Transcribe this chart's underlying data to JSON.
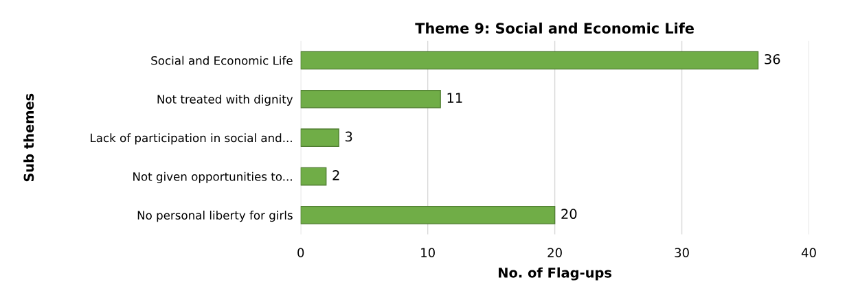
{
  "chart_data": {
    "type": "bar",
    "orientation": "horizontal",
    "title": "Theme 9: Social and Economic Life",
    "xlabel": "No. of Flag-ups",
    "ylabel": "Sub themes",
    "categories": [
      "Social and Economic Life",
      "Not treated with dignity",
      "Lack of participation in social and...",
      "Not given opportunities to...",
      "No personal liberty for girls"
    ],
    "values": [
      36,
      11,
      3,
      2,
      20
    ],
    "color": "#70ad47",
    "xlim": [
      0,
      40
    ],
    "xticks": [
      0,
      10,
      20,
      30,
      40
    ],
    "grid": "x",
    "data_labels": true
  }
}
